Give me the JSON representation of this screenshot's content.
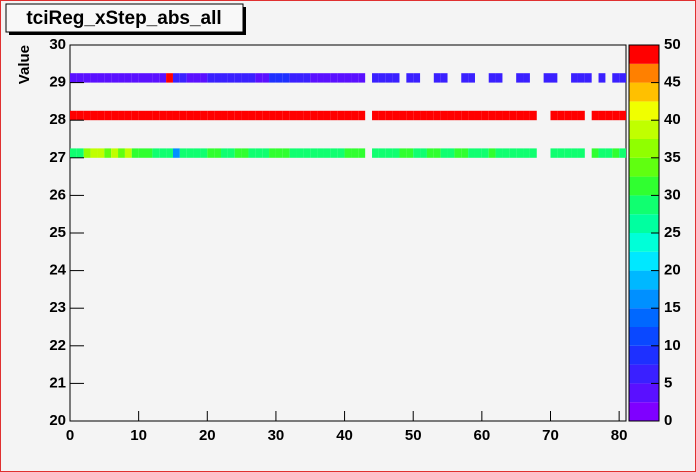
{
  "chart_data": {
    "type": "heatmap",
    "title": "tciReg_xStep_abs_all",
    "y_label": "Value",
    "bins": [
      0,
      1,
      2,
      3,
      4,
      5,
      6,
      7,
      8,
      9,
      10,
      11,
      12,
      13,
      14,
      15,
      16,
      17,
      18,
      19,
      20,
      21,
      22,
      23,
      24,
      25,
      26,
      27,
      28,
      29,
      30,
      31,
      32,
      33,
      34,
      35,
      36,
      37,
      38,
      39,
      40,
      41,
      42,
      43,
      44,
      45,
      46,
      47,
      48,
      49,
      50,
      51,
      52,
      53,
      54,
      55,
      56,
      57,
      58,
      59,
      60,
      61,
      62,
      63,
      64,
      65,
      66,
      67,
      68,
      69,
      70,
      71,
      72,
      73,
      74,
      75,
      76,
      77,
      78,
      79,
      80,
      81
    ],
    "rows": [
      {
        "y": [
          27,
          27.25
        ],
        "values": [
          28,
          28,
          35,
          38,
          38,
          33,
          38,
          33,
          38,
          32,
          32,
          32,
          28,
          28,
          28,
          17,
          28,
          28,
          28,
          28,
          30,
          30,
          28,
          28,
          32,
          32,
          28,
          28,
          28,
          30,
          30,
          30,
          28,
          28,
          28,
          28,
          28,
          28,
          28,
          28,
          30,
          30,
          30,
          null,
          28,
          28,
          28,
          28,
          32,
          32,
          28,
          28,
          30,
          30,
          28,
          28,
          32,
          32,
          28,
          28,
          28,
          30,
          28,
          28,
          28,
          28,
          28,
          28,
          null,
          null,
          28,
          28,
          28,
          28,
          28,
          null,
          30,
          28,
          28,
          32,
          28
        ]
      },
      {
        "y": [
          28,
          28.25
        ],
        "values": [
          48,
          48,
          48,
          48,
          48,
          48,
          48,
          48,
          48,
          48,
          48,
          48,
          48,
          48,
          48,
          48,
          48,
          48,
          48,
          48,
          48,
          48,
          48,
          48,
          48,
          48,
          48,
          48,
          48,
          48,
          48,
          48,
          48,
          48,
          48,
          48,
          48,
          48,
          48,
          48,
          48,
          48,
          48,
          null,
          48,
          48,
          48,
          48,
          48,
          48,
          48,
          48,
          48,
          48,
          48,
          48,
          48,
          48,
          48,
          48,
          48,
          48,
          48,
          48,
          48,
          48,
          48,
          48,
          null,
          null,
          48,
          48,
          48,
          48,
          48,
          null,
          48,
          48,
          48,
          48,
          48
        ]
      },
      {
        "y": [
          29,
          29.25
        ],
        "values": [
          3,
          3,
          3,
          3,
          3,
          3,
          3,
          3,
          3,
          3,
          3,
          3,
          4,
          4,
          48,
          6,
          6,
          4,
          4,
          3,
          6,
          6,
          6,
          6,
          6,
          6,
          6,
          3,
          3,
          8,
          8,
          8,
          6,
          6,
          6,
          4,
          4,
          4,
          4,
          4,
          4,
          4,
          4,
          null,
          6,
          6,
          6,
          6,
          null,
          6,
          6,
          null,
          null,
          6,
          6,
          null,
          null,
          6,
          6,
          null,
          null,
          6,
          6,
          null,
          null,
          6,
          6,
          null,
          null,
          6,
          6,
          null,
          null,
          6,
          6,
          6,
          null,
          6,
          null,
          6,
          6
        ]
      }
    ],
    "xlim": [
      0,
      81
    ],
    "xticks": [
      0,
      10,
      20,
      30,
      40,
      50,
      60,
      70,
      80
    ],
    "ylim": [
      20,
      30
    ],
    "yticks": [
      20,
      21,
      22,
      23,
      24,
      25,
      26,
      27,
      28,
      29,
      30
    ],
    "zlim": [
      0,
      50
    ],
    "zticks": [
      0,
      5,
      10,
      15,
      20,
      25,
      30,
      35,
      40,
      45,
      50
    ],
    "palette": [
      "#7f00ff",
      "#5a10ff",
      "#3a20ff",
      "#1e30ff",
      "#0a48ff",
      "#0068ff",
      "#0090ff",
      "#00b8ff",
      "#00e8ff",
      "#00ffd8",
      "#00ffa0",
      "#10ff70",
      "#30ff30",
      "#60ff10",
      "#90ff00",
      "#c0ff00",
      "#f0ff00",
      "#ffc000",
      "#ff8000",
      "#ff0000"
    ]
  }
}
